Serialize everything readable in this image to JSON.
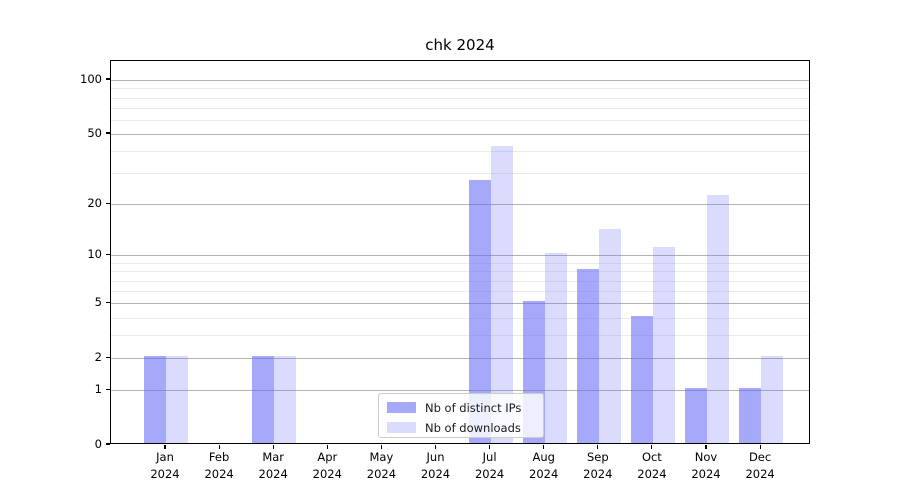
{
  "title": "chk 2024",
  "chart_data": {
    "type": "bar",
    "title": "chk 2024",
    "scale": "log1p",
    "x": {
      "months": [
        "Jan",
        "Feb",
        "Mar",
        "Apr",
        "May",
        "Jun",
        "Jul",
        "Aug",
        "Sep",
        "Oct",
        "Nov",
        "Dec"
      ],
      "year_label": "2024"
    },
    "series": [
      {
        "name": "Nb of distinct IPs",
        "values": [
          2,
          0,
          2,
          0,
          0,
          0,
          27,
          5,
          8,
          4,
          1,
          1
        ]
      },
      {
        "name": "Nb of downloads",
        "values": [
          2,
          0,
          2,
          0,
          0,
          0,
          42,
          10,
          14,
          11,
          22,
          2
        ]
      }
    ],
    "yticks_major": [
      0,
      1,
      2,
      5,
      10,
      20,
      50,
      100
    ],
    "yticks_minor": [
      3,
      4,
      6,
      7,
      8,
      9,
      30,
      40,
      60,
      70,
      80,
      90
    ],
    "ylim": [
      0,
      127
    ],
    "grid": "on",
    "legend_position": "lower center"
  },
  "colors": {
    "bar_base_rgb": "101,106,245",
    "bar_dark_alpha": "0.58",
    "bar_light_alpha": "0.24",
    "grid_major": "#b3b3b3",
    "grid_minor": "#ebebeb",
    "spine": "#000000",
    "legend_border": "#cccccc"
  }
}
